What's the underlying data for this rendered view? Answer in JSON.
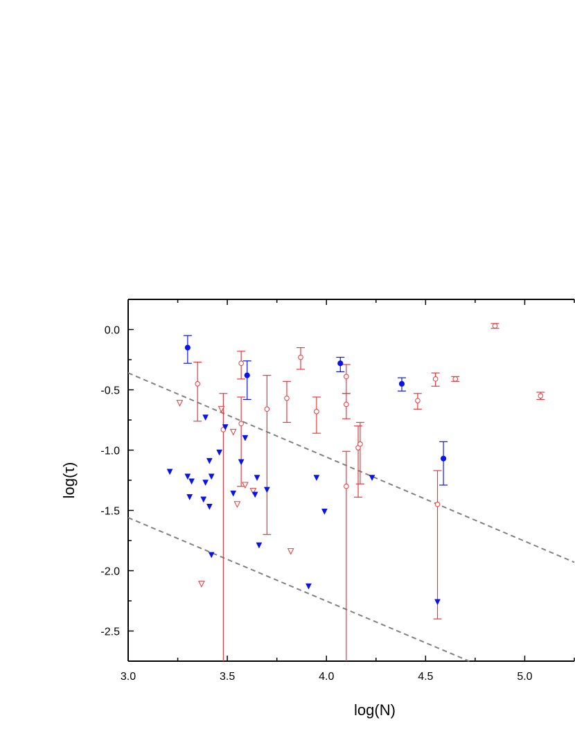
{
  "chart_data": {
    "type": "scatter",
    "xlabel": "log(N)",
    "ylabel": "log(τ)",
    "xlim": [
      3.0,
      5.25
    ],
    "ylim": [
      -2.75,
      0.25
    ],
    "x_ticks": [
      "3.0",
      "3.5",
      "4.0",
      "4.5",
      "5.0"
    ],
    "y_ticks": [
      "0.0",
      "-0.5",
      "-1.0",
      "-1.5",
      "-2.0",
      "-2.5"
    ],
    "grid": false,
    "colors": {
      "red": "#e8383b",
      "blue": "#0a14e6",
      "dash": "#808080"
    },
    "series": [
      {
        "marker": "open-circle",
        "color": "red",
        "points": [
          {
            "x": 3.35,
            "y": -0.45,
            "lo": -0.76,
            "hi": -0.27
          },
          {
            "x": 3.48,
            "y": -0.83,
            "lo": -2.75,
            "hi": -0.53
          },
          {
            "x": 3.57,
            "y": -0.28,
            "lo": -0.41,
            "hi": -0.18
          },
          {
            "x": 3.57,
            "y": -0.78,
            "lo": -1.3,
            "hi": -0.56
          },
          {
            "x": 3.7,
            "y": -0.66,
            "lo": -1.7,
            "hi": -0.38
          },
          {
            "x": 3.8,
            "y": -0.57,
            "lo": -0.77,
            "hi": -0.43
          },
          {
            "x": 3.87,
            "y": -0.23,
            "lo": -0.33,
            "hi": -0.15
          },
          {
            "x": 3.95,
            "y": -0.68,
            "lo": -0.86,
            "hi": -0.56
          },
          {
            "x": 4.1,
            "y": -0.39,
            "lo": -0.53,
            "hi": -0.29
          },
          {
            "x": 4.1,
            "y": -0.62,
            "lo": -0.74,
            "hi": -0.53
          },
          {
            "x": 4.1,
            "y": -1.3,
            "lo": -2.75,
            "hi": -1.01
          },
          {
            "x": 4.16,
            "y": -0.98,
            "lo": -1.39,
            "hi": -0.8
          },
          {
            "x": 4.17,
            "y": -0.95,
            "lo": -1.28,
            "hi": -0.77
          },
          {
            "x": 4.46,
            "y": -0.59,
            "lo": -0.66,
            "hi": -0.53
          },
          {
            "x": 4.55,
            "y": -0.41,
            "lo": -0.47,
            "hi": -0.36
          },
          {
            "x": 4.56,
            "y": -1.45,
            "lo": -2.4,
            "hi": -1.17
          },
          {
            "x": 4.65,
            "y": -0.41,
            "lo": -0.43,
            "hi": -0.39
          },
          {
            "x": 4.85,
            "y": 0.03,
            "lo": 0.01,
            "hi": 0.05
          },
          {
            "x": 5.08,
            "y": -0.55,
            "lo": -0.58,
            "hi": -0.52
          }
        ]
      },
      {
        "marker": "filled-circle",
        "color": "blue",
        "points": [
          {
            "x": 3.3,
            "y": -0.15,
            "lo": -0.28,
            "hi": -0.05
          },
          {
            "x": 3.6,
            "y": -0.38,
            "lo": -0.58,
            "hi": -0.26
          },
          {
            "x": 4.07,
            "y": -0.28,
            "lo": -0.35,
            "hi": -0.23
          },
          {
            "x": 4.38,
            "y": -0.45,
            "lo": -0.51,
            "hi": -0.4
          },
          {
            "x": 4.59,
            "y": -1.07,
            "lo": -1.29,
            "hi": -0.93
          }
        ]
      },
      {
        "marker": "open-triangle-down",
        "color": "red",
        "points": [
          {
            "x": 3.26,
            "y": -0.61
          },
          {
            "x": 3.47,
            "y": -0.66
          },
          {
            "x": 3.53,
            "y": -0.85
          },
          {
            "x": 3.55,
            "y": -1.45
          },
          {
            "x": 3.59,
            "y": -1.29
          },
          {
            "x": 3.63,
            "y": -1.34
          },
          {
            "x": 3.37,
            "y": -2.11
          },
          {
            "x": 3.82,
            "y": -1.84
          }
        ]
      },
      {
        "marker": "filled-triangle-down",
        "color": "blue",
        "points": [
          {
            "x": 3.21,
            "y": -1.18
          },
          {
            "x": 3.3,
            "y": -1.22
          },
          {
            "x": 3.32,
            "y": -1.26
          },
          {
            "x": 3.31,
            "y": -1.39
          },
          {
            "x": 3.38,
            "y": -1.41
          },
          {
            "x": 3.39,
            "y": -0.73
          },
          {
            "x": 3.39,
            "y": -1.27
          },
          {
            "x": 3.41,
            "y": -1.09
          },
          {
            "x": 3.42,
            "y": -1.22
          },
          {
            "x": 3.41,
            "y": -1.47
          },
          {
            "x": 3.42,
            "y": -1.87
          },
          {
            "x": 3.46,
            "y": -1.02
          },
          {
            "x": 3.49,
            "y": -0.81
          },
          {
            "x": 3.53,
            "y": -1.36
          },
          {
            "x": 3.57,
            "y": -1.1
          },
          {
            "x": 3.59,
            "y": -0.9
          },
          {
            "x": 3.64,
            "y": -1.37
          },
          {
            "x": 3.65,
            "y": -1.23
          },
          {
            "x": 3.66,
            "y": -1.79
          },
          {
            "x": 3.7,
            "y": -1.33
          },
          {
            "x": 3.91,
            "y": -2.13
          },
          {
            "x": 3.95,
            "y": -1.23
          },
          {
            "x": 3.99,
            "y": -1.51
          },
          {
            "x": 4.23,
            "y": -1.23
          },
          {
            "x": 4.56,
            "y": -2.26
          }
        ]
      }
    ],
    "reference_lines": [
      {
        "style": "dashed",
        "color": "dash",
        "x1": 3.0,
        "y1": -0.36,
        "x2": 5.25,
        "y2": -1.93
      },
      {
        "style": "dashed",
        "color": "dash",
        "x1": 3.0,
        "y1": -1.56,
        "x2": 4.72,
        "y2": -2.75
      }
    ]
  }
}
